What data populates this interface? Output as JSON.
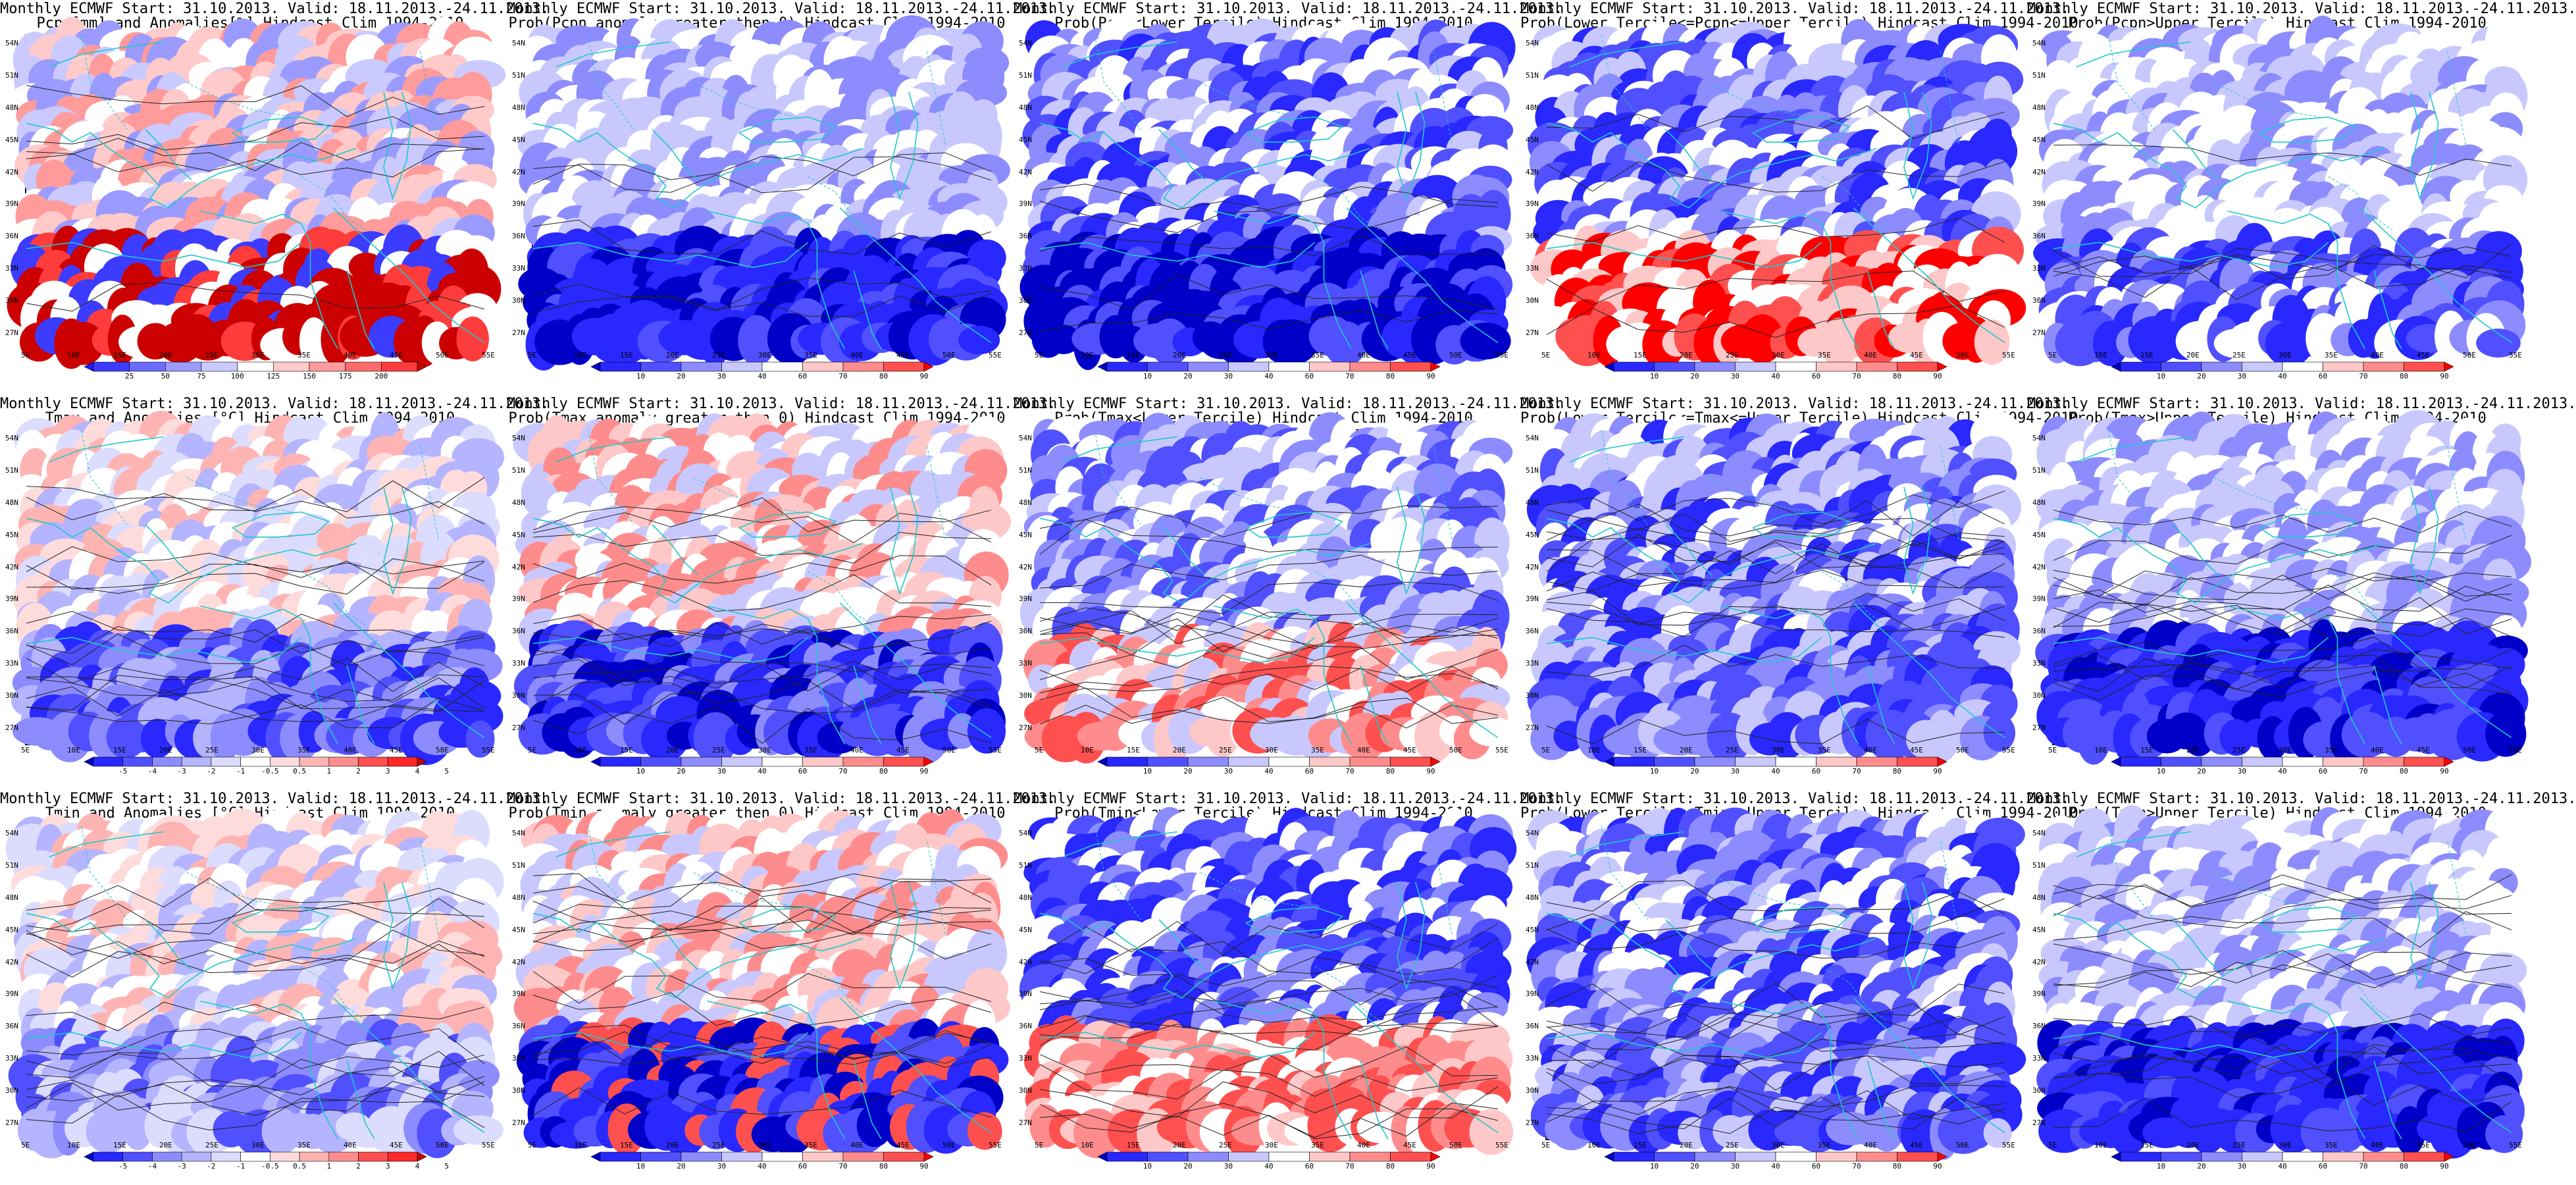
{
  "panels": [
    {
      "id": "p1",
      "title1": "Monthly ECMWF Start: 31.10.2013. Valid: 18.11.2013.-24.11.2013.",
      "title2": "Pcpn[mm] and Anomalies[%]",
      "title3": "Hindcast Clim 1994-2010",
      "colorbar": {
        "labels": [
          "25",
          "50",
          "75",
          "100",
          "125",
          "150",
          "175",
          "200"
        ],
        "colors": [
          "#1a1aff",
          "#3c3cff",
          "#6b6bff",
          "#9b9bff",
          "#cacaff",
          "#ffffff",
          "#ffcaca",
          "#ff9b9b",
          "#ff6b6b",
          "#ff3c3c",
          "#cc0000"
        ]
      },
      "colormode": "precip"
    },
    {
      "id": "p2",
      "title1": "Monthly ECMWF Start: 31.10.2013. Valid: 18.11.2013.-24.11.2013.",
      "title2": "Prob(Pcpn anomaly greater then 0)",
      "title3": "Hindcast Clim 1994-2010",
      "colorbar": {
        "labels": [
          "10",
          "20",
          "30",
          "40",
          "60",
          "70",
          "80",
          "90"
        ],
        "colors": [
          "#0000c8",
          "#2828ff",
          "#5050ff",
          "#8c8cff",
          "#c8c8ff",
          "#ffffff",
          "#ffc8c8",
          "#ff8c8c",
          "#ff5050",
          "#ff0000"
        ]
      },
      "colormode": "probblue"
    },
    {
      "id": "p3",
      "title1": "Monthly ECMWF Start: 31.10.2013. Valid: 18.11.2013.-24.11.2013.",
      "title2": "Prob(Pcpn<Lower Tercile)",
      "title3": "Hindcast Clim 1994-2010",
      "colorbar": {
        "labels": [
          "10",
          "20",
          "30",
          "40",
          "60",
          "70",
          "80",
          "90"
        ],
        "colors": [
          "#0000c8",
          "#2828ff",
          "#5050ff",
          "#8c8cff",
          "#c8c8ff",
          "#ffffff",
          "#ffc8c8",
          "#ff8c8c",
          "#ff5050",
          "#ff0000"
        ]
      },
      "colormode": "deepblue"
    },
    {
      "id": "p4",
      "title1": "Monthly ECMWF Start: 31.10.2013. Valid: 18.11.2013.-24.11.2013.",
      "title2": "Prob(Lower Tercile<=Pcpn<=Upper Tercile)",
      "title3": "Hindcast Clim 1994-2010",
      "colorbar": {
        "labels": [
          "10",
          "20",
          "30",
          "40",
          "60",
          "70",
          "80",
          "90"
        ],
        "colors": [
          "#0000c8",
          "#2828ff",
          "#5050ff",
          "#8c8cff",
          "#c8c8ff",
          "#ffffff",
          "#ffc8c8",
          "#ff8c8c",
          "#ff5050",
          "#ff0000"
        ]
      },
      "colormode": "mixred"
    },
    {
      "id": "p5",
      "title1": "Monthly ECMWF Start: 31.10.2013. Valid: 18.11.2013.-24.11.2013.",
      "title2": "Prob(Pcpn>Upper Tercile)",
      "title3": "Hindcast Clim 1994-2010",
      "colorbar": {
        "labels": [
          "10",
          "20",
          "30",
          "40",
          "60",
          "70",
          "80",
          "90"
        ],
        "colors": [
          "#0000c8",
          "#2828ff",
          "#5050ff",
          "#8c8cff",
          "#c8c8ff",
          "#ffffff",
          "#ffc8c8",
          "#ff8c8c",
          "#ff5050",
          "#ff0000"
        ]
      },
      "colormode": "lightblue"
    },
    {
      "id": "p6",
      "title1": "Monthly ECMWF Start: 31.10.2013. Valid: 18.11.2013.-24.11.2013.",
      "title2": "Tmax and Anomalies [°C]",
      "title3": "Hindcast Clim 1994-2010",
      "colorbar": {
        "labels": [
          "-5",
          "-4",
          "-3",
          "-2",
          "-1",
          "-0.5",
          "0.5",
          "1",
          "2",
          "3",
          "4",
          "5"
        ],
        "colors": [
          "#0000c8",
          "#2828ff",
          "#5050ff",
          "#8c8cff",
          "#b4b4ff",
          "#dcdcff",
          "#ffffff",
          "#ffdcdc",
          "#ffb4b4",
          "#ff8c8c",
          "#ff5050",
          "#ff2828",
          "#c80000"
        ]
      },
      "colormode": "tmax"
    },
    {
      "id": "p7",
      "title1": "Monthly ECMWF Start: 31.10.2013. Valid: 18.11.2013.-24.11.2013.",
      "title2": "Prob(Tmax anomaly greater then 0)",
      "title3": "Hindcast Clim 1994-2010",
      "colorbar": {
        "labels": [
          "10",
          "20",
          "30",
          "40",
          "60",
          "70",
          "80",
          "90"
        ],
        "colors": [
          "#0000c8",
          "#2828ff",
          "#5050ff",
          "#8c8cff",
          "#c8c8ff",
          "#ffffff",
          "#ffc8c8",
          "#ff8c8c",
          "#ff5050",
          "#ff0000"
        ]
      },
      "colormode": "tmaxprob"
    },
    {
      "id": "p8",
      "title1": "Monthly ECMWF Start: 31.10.2013. Valid: 18.11.2013.-24.11.2013.",
      "title2": "Prob(Tmax<Lower Tercile)",
      "title3": "Hindcast Clim 1994-2010",
      "colorbar": {
        "labels": [
          "10",
          "20",
          "30",
          "40",
          "60",
          "70",
          "80",
          "90"
        ],
        "colors": [
          "#0000c8",
          "#2828ff",
          "#5050ff",
          "#8c8cff",
          "#c8c8ff",
          "#ffffff",
          "#ffc8c8",
          "#ff8c8c",
          "#ff5050",
          "#ff0000"
        ]
      },
      "colormode": "tmaxlow"
    },
    {
      "id": "p9",
      "title1": "Monthly ECMWF Start: 31.10.2013. Valid: 18.11.2013.-24.11.2013.",
      "title2": "Prob(Lower Tercile<=Tmax<=Upper Tercile)",
      "title3": "Hindcast Clim 1994-2010",
      "colorbar": {
        "labels": [
          "10",
          "20",
          "30",
          "40",
          "60",
          "70",
          "80",
          "90"
        ],
        "colors": [
          "#0000c8",
          "#2828ff",
          "#5050ff",
          "#8c8cff",
          "#c8c8ff",
          "#ffffff",
          "#ffc8c8",
          "#ff8c8c",
          "#ff5050",
          "#ff0000"
        ]
      },
      "colormode": "midblue"
    },
    {
      "id": "p10",
      "title1": "Monthly ECMWF Start: 31.10.2013. Valid: 18.11.2013.-24.11.2013.",
      "title2": "Prob(Tmax>Upper Tercile)",
      "title3": "Hindcast Clim 1994-2010",
      "colorbar": {
        "labels": [
          "10",
          "20",
          "30",
          "40",
          "60",
          "70",
          "80",
          "90"
        ],
        "colors": [
          "#0000c8",
          "#2828ff",
          "#5050ff",
          "#8c8cff",
          "#c8c8ff",
          "#ffffff",
          "#ffc8c8",
          "#ff8c8c",
          "#ff5050",
          "#ff0000"
        ]
      },
      "colormode": "upperblue"
    },
    {
      "id": "p11",
      "title1": "Monthly ECMWF Start: 31.10.2013. Valid: 18.11.2013.-24.11.2013.",
      "title2": "Tmin and Anomalies [°C]",
      "title3": "Hindcast Clim 1994-2010",
      "colorbar": {
        "labels": [
          "-5",
          "-4",
          "-3",
          "-2",
          "-1",
          "-0.5",
          "0.5",
          "1",
          "2",
          "3",
          "4",
          "5"
        ],
        "colors": [
          "#0000c8",
          "#2828ff",
          "#5050ff",
          "#8c8cff",
          "#b4b4ff",
          "#dcdcff",
          "#ffffff",
          "#ffdcdc",
          "#ffb4b4",
          "#ff8c8c",
          "#ff5050",
          "#ff2828",
          "#c80000"
        ]
      },
      "colormode": "tmin"
    },
    {
      "id": "p12",
      "title1": "Monthly ECMWF Start: 31.10.2013. Valid: 18.11.2013.-24.11.2013.",
      "title2": "Prob(Tmin anomaly greater then 0)",
      "title3": "Hindcast Clim 1994-2010",
      "colorbar": {
        "labels": [
          "10",
          "20",
          "30",
          "40",
          "60",
          "70",
          "80",
          "90"
        ],
        "colors": [
          "#0000c8",
          "#2828ff",
          "#5050ff",
          "#8c8cff",
          "#c8c8ff",
          "#ffffff",
          "#ffc8c8",
          "#ff8c8c",
          "#ff5050",
          "#ff0000"
        ]
      },
      "colormode": "tminprob"
    },
    {
      "id": "p13",
      "title1": "Monthly ECMWF Start: 31.10.2013. Valid: 18.11.2013.-24.11.2013.",
      "title2": "Prob(Tmin<Lower Tercile)",
      "title3": "Hindcast Clim 1994-2010",
      "colorbar": {
        "labels": [
          "10",
          "20",
          "30",
          "40",
          "60",
          "70",
          "80",
          "90"
        ],
        "colors": [
          "#0000c8",
          "#2828ff",
          "#5050ff",
          "#8c8cff",
          "#c8c8ff",
          "#ffffff",
          "#ffc8c8",
          "#ff8c8c",
          "#ff5050",
          "#ff0000"
        ]
      },
      "colormode": "tminlow"
    },
    {
      "id": "p14",
      "title1": "Monthly ECMWF Start: 31.10.2013. Valid: 18.11.2013.-24.11.2013.",
      "title2": "Prob(Lower Tercile<=Tmin<=Upper Tercile)",
      "title3": "Hindcast Clim 1994-2010",
      "colorbar": {
        "labels": [
          "10",
          "20",
          "30",
          "40",
          "60",
          "70",
          "80",
          "90"
        ],
        "colors": [
          "#0000c8",
          "#2828ff",
          "#5050ff",
          "#8c8cff",
          "#c8c8ff",
          "#ffffff",
          "#ffc8c8",
          "#ff8c8c",
          "#ff5050",
          "#ff0000"
        ]
      },
      "colormode": "midblue"
    },
    {
      "id": "p15",
      "title1": "Monthly ECMWF Start: 31.10.2013. Valid: 18.11.2013.-24.11.2013.",
      "title2": "Prob(Tmin>Upper Tercile)",
      "title3": "Hindcast Clim 1994-2010",
      "colorbar": {
        "labels": [
          "10",
          "20",
          "30",
          "40",
          "60",
          "70",
          "80",
          "90"
        ],
        "colors": [
          "#0000c8",
          "#2828ff",
          "#5050ff",
          "#8c8cff",
          "#c8c8ff",
          "#ffffff",
          "#ffc8c8",
          "#ff8c8c",
          "#ff5050",
          "#ff0000"
        ]
      },
      "colormode": "upperblue"
    }
  ],
  "lon_labels": [
    "5E",
    "10E",
    "15E",
    "20E",
    "25E",
    "30E",
    "35E",
    "40E",
    "45E",
    "50E",
    "55E"
  ],
  "lat_labels": [
    "54N",
    "51N",
    "48N",
    "45N",
    "42N",
    "39N",
    "36N",
    "33N",
    "30N",
    "27N"
  ]
}
